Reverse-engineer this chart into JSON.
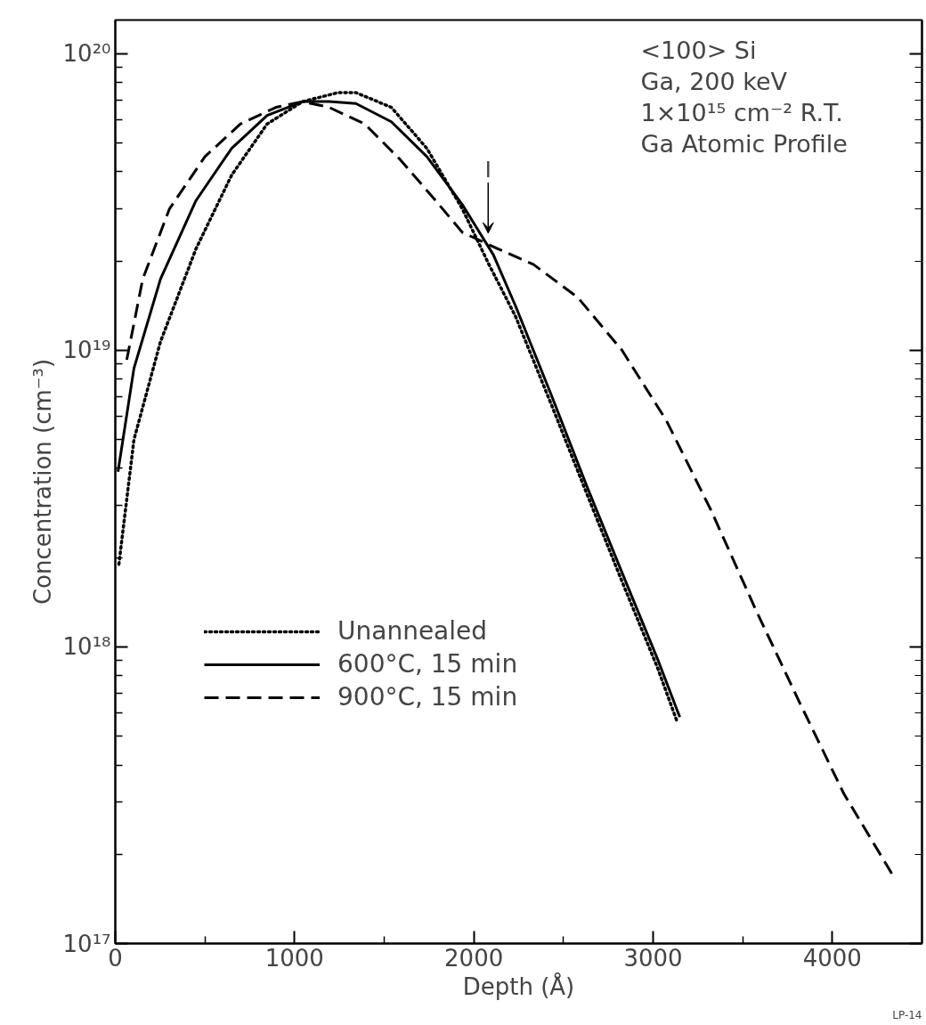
{
  "chart_data": {
    "type": "line",
    "xlabel": "Depth (Å)",
    "ylabel": "Concentration (cm⁻³)",
    "log": "y",
    "grid": false,
    "legend": "bottom left",
    "marker": "none",
    "xlim": [
      0,
      4500
    ],
    "ylim": [
      1e+17,
      1.3e+20
    ],
    "xticks": [
      0,
      {
        "value": 500,
        "label": null
      },
      1000,
      {
        "value": 1500,
        "label": null
      },
      2000,
      {
        "value": 2500,
        "label": null
      },
      3000,
      {
        "value": 3500,
        "label": null
      },
      4000
    ],
    "yticks": [
      {
        "value": 1e+17,
        "label": "10¹⁷"
      },
      {
        "value": 2e+17,
        "label": null
      },
      {
        "value": 3e+17,
        "label": null
      },
      {
        "value": 4e+17,
        "label": null
      },
      {
        "value": 5e+17,
        "label": null
      },
      {
        "value": 6e+17,
        "label": null
      },
      {
        "value": 7e+17,
        "label": null
      },
      {
        "value": 8e+17,
        "label": null
      },
      {
        "value": 9e+17,
        "label": null
      },
      {
        "value": 1e+18,
        "label": "10¹⁸"
      },
      {
        "value": 2e+18,
        "label": null
      },
      {
        "value": 3e+18,
        "label": null
      },
      {
        "value": 4e+18,
        "label": null
      },
      {
        "value": 5e+18,
        "label": null
      },
      {
        "value": 6e+18,
        "label": null
      },
      {
        "value": 7e+18,
        "label": null
      },
      {
        "value": 8e+18,
        "label": null
      },
      {
        "value": 9e+18,
        "label": null
      },
      {
        "value": 1e+19,
        "label": "10¹⁹"
      },
      {
        "value": 2e+19,
        "label": null
      },
      {
        "value": 3e+19,
        "label": null
      },
      {
        "value": 4e+19,
        "label": null
      },
      {
        "value": 5e+19,
        "label": null
      },
      {
        "value": 6e+19,
        "label": null
      },
      {
        "value": 7e+19,
        "label": null
      },
      {
        "value": 8e+19,
        "label": null
      },
      {
        "value": 9e+19,
        "label": null
      },
      {
        "value": 1e+20,
        "label": "10²⁰"
      }
    ],
    "series": [
      {
        "name": "Unannealed",
        "color": "#000000",
        "line_style": "dotted",
        "x": [
          20,
          104,
          252,
          450,
          649,
          847,
          1045,
          1243,
          1342,
          1540,
          1738,
          1936,
          2084,
          2233,
          2431,
          2629,
          2827,
          3025,
          3134
        ],
        "values": [
          1.9e+18,
          5e+18,
          1.07e+19,
          2.2e+19,
          3.9e+19,
          5.8e+19,
          6.9e+19,
          7.4e+19,
          7.4e+19,
          6.6e+19,
          4.8e+19,
          3e+19,
          1.95e+19,
          1.3e+19,
          6.6e+18,
          3.3e+18,
          1.66e+18,
          8.5e+17,
          5.6e+17
        ]
      },
      {
        "name": "600°C, 15 min",
        "color": "#000000",
        "line_style": "solid",
        "x": [
          15,
          104,
          252,
          450,
          649,
          847,
          1045,
          1193,
          1342,
          1540,
          1738,
          1936,
          2109,
          2233,
          2431,
          2629,
          2827,
          3025,
          3149
        ],
        "values": [
          3.9e+18,
          8.7e+18,
          1.74e+19,
          3.2e+19,
          4.8e+19,
          6.2e+19,
          6.9e+19,
          6.9e+19,
          6.8e+19,
          5.9e+19,
          4.5e+19,
          3.1e+19,
          2.1e+19,
          1.41e+19,
          7.1e+18,
          3.5e+18,
          1.78e+18,
          9.1e+17,
          5.8e+17
        ]
      },
      {
        "name": "900°C, 15 min",
        "color": "#000000",
        "line_style": "dashed",
        "x": [
          64,
          153,
          302,
          500,
          698,
          896,
          1045,
          1193,
          1391,
          1589,
          1787,
          1936,
          2134,
          2332,
          2579,
          2827,
          3074,
          3322,
          3569,
          3817,
          4064,
          4337
        ],
        "values": [
          9.3e+18,
          1.74e+19,
          3e+19,
          4.5e+19,
          5.8e+19,
          6.6e+19,
          6.9e+19,
          6.6e+19,
          5.8e+19,
          4.4e+19,
          3.2e+19,
          2.5e+19,
          2.2e+19,
          1.95e+19,
          1.51e+19,
          1e+19,
          5.8e+18,
          2.9e+18,
          1.35e+18,
          6.5e+17,
          3.2e+17,
          1.7e+17
        ]
      }
    ],
    "annotations": [
      "<100> Si",
      "Ga, 200 keV",
      "1×10¹⁵ cm⁻² R.T.",
      "Ga Atomic Profile",
      {
        "text": "I",
        "x": 2080,
        "y": 2.3e+19
      },
      "LP-14"
    ]
  }
}
